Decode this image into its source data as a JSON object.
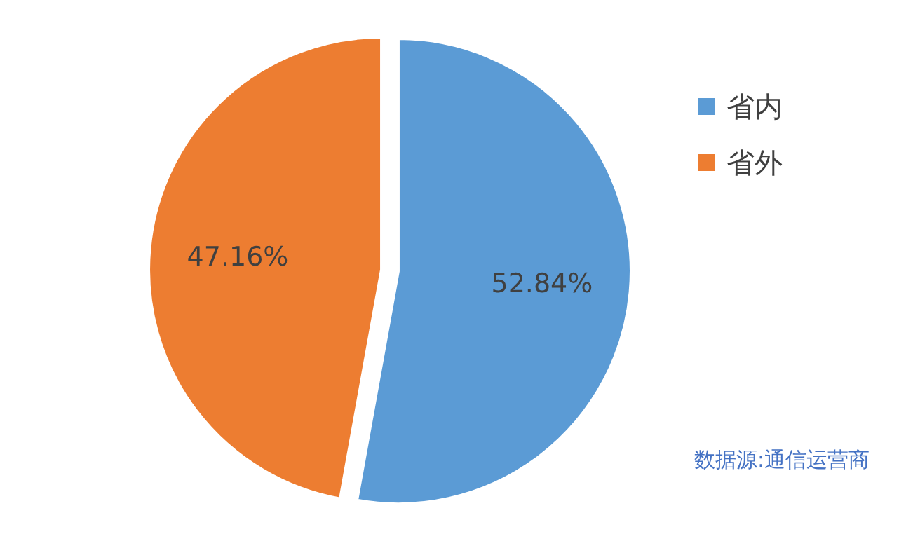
{
  "chart_data": {
    "type": "pie",
    "categories": [
      "省内",
      "省外"
    ],
    "values": [
      52.84,
      47.16
    ],
    "colors": [
      "#5b9bd5",
      "#ed7d31"
    ],
    "value_labels": [
      "52.84%",
      "47.16%"
    ],
    "legend": "right",
    "annotations": [
      "数据源:通信运营商"
    ]
  }
}
